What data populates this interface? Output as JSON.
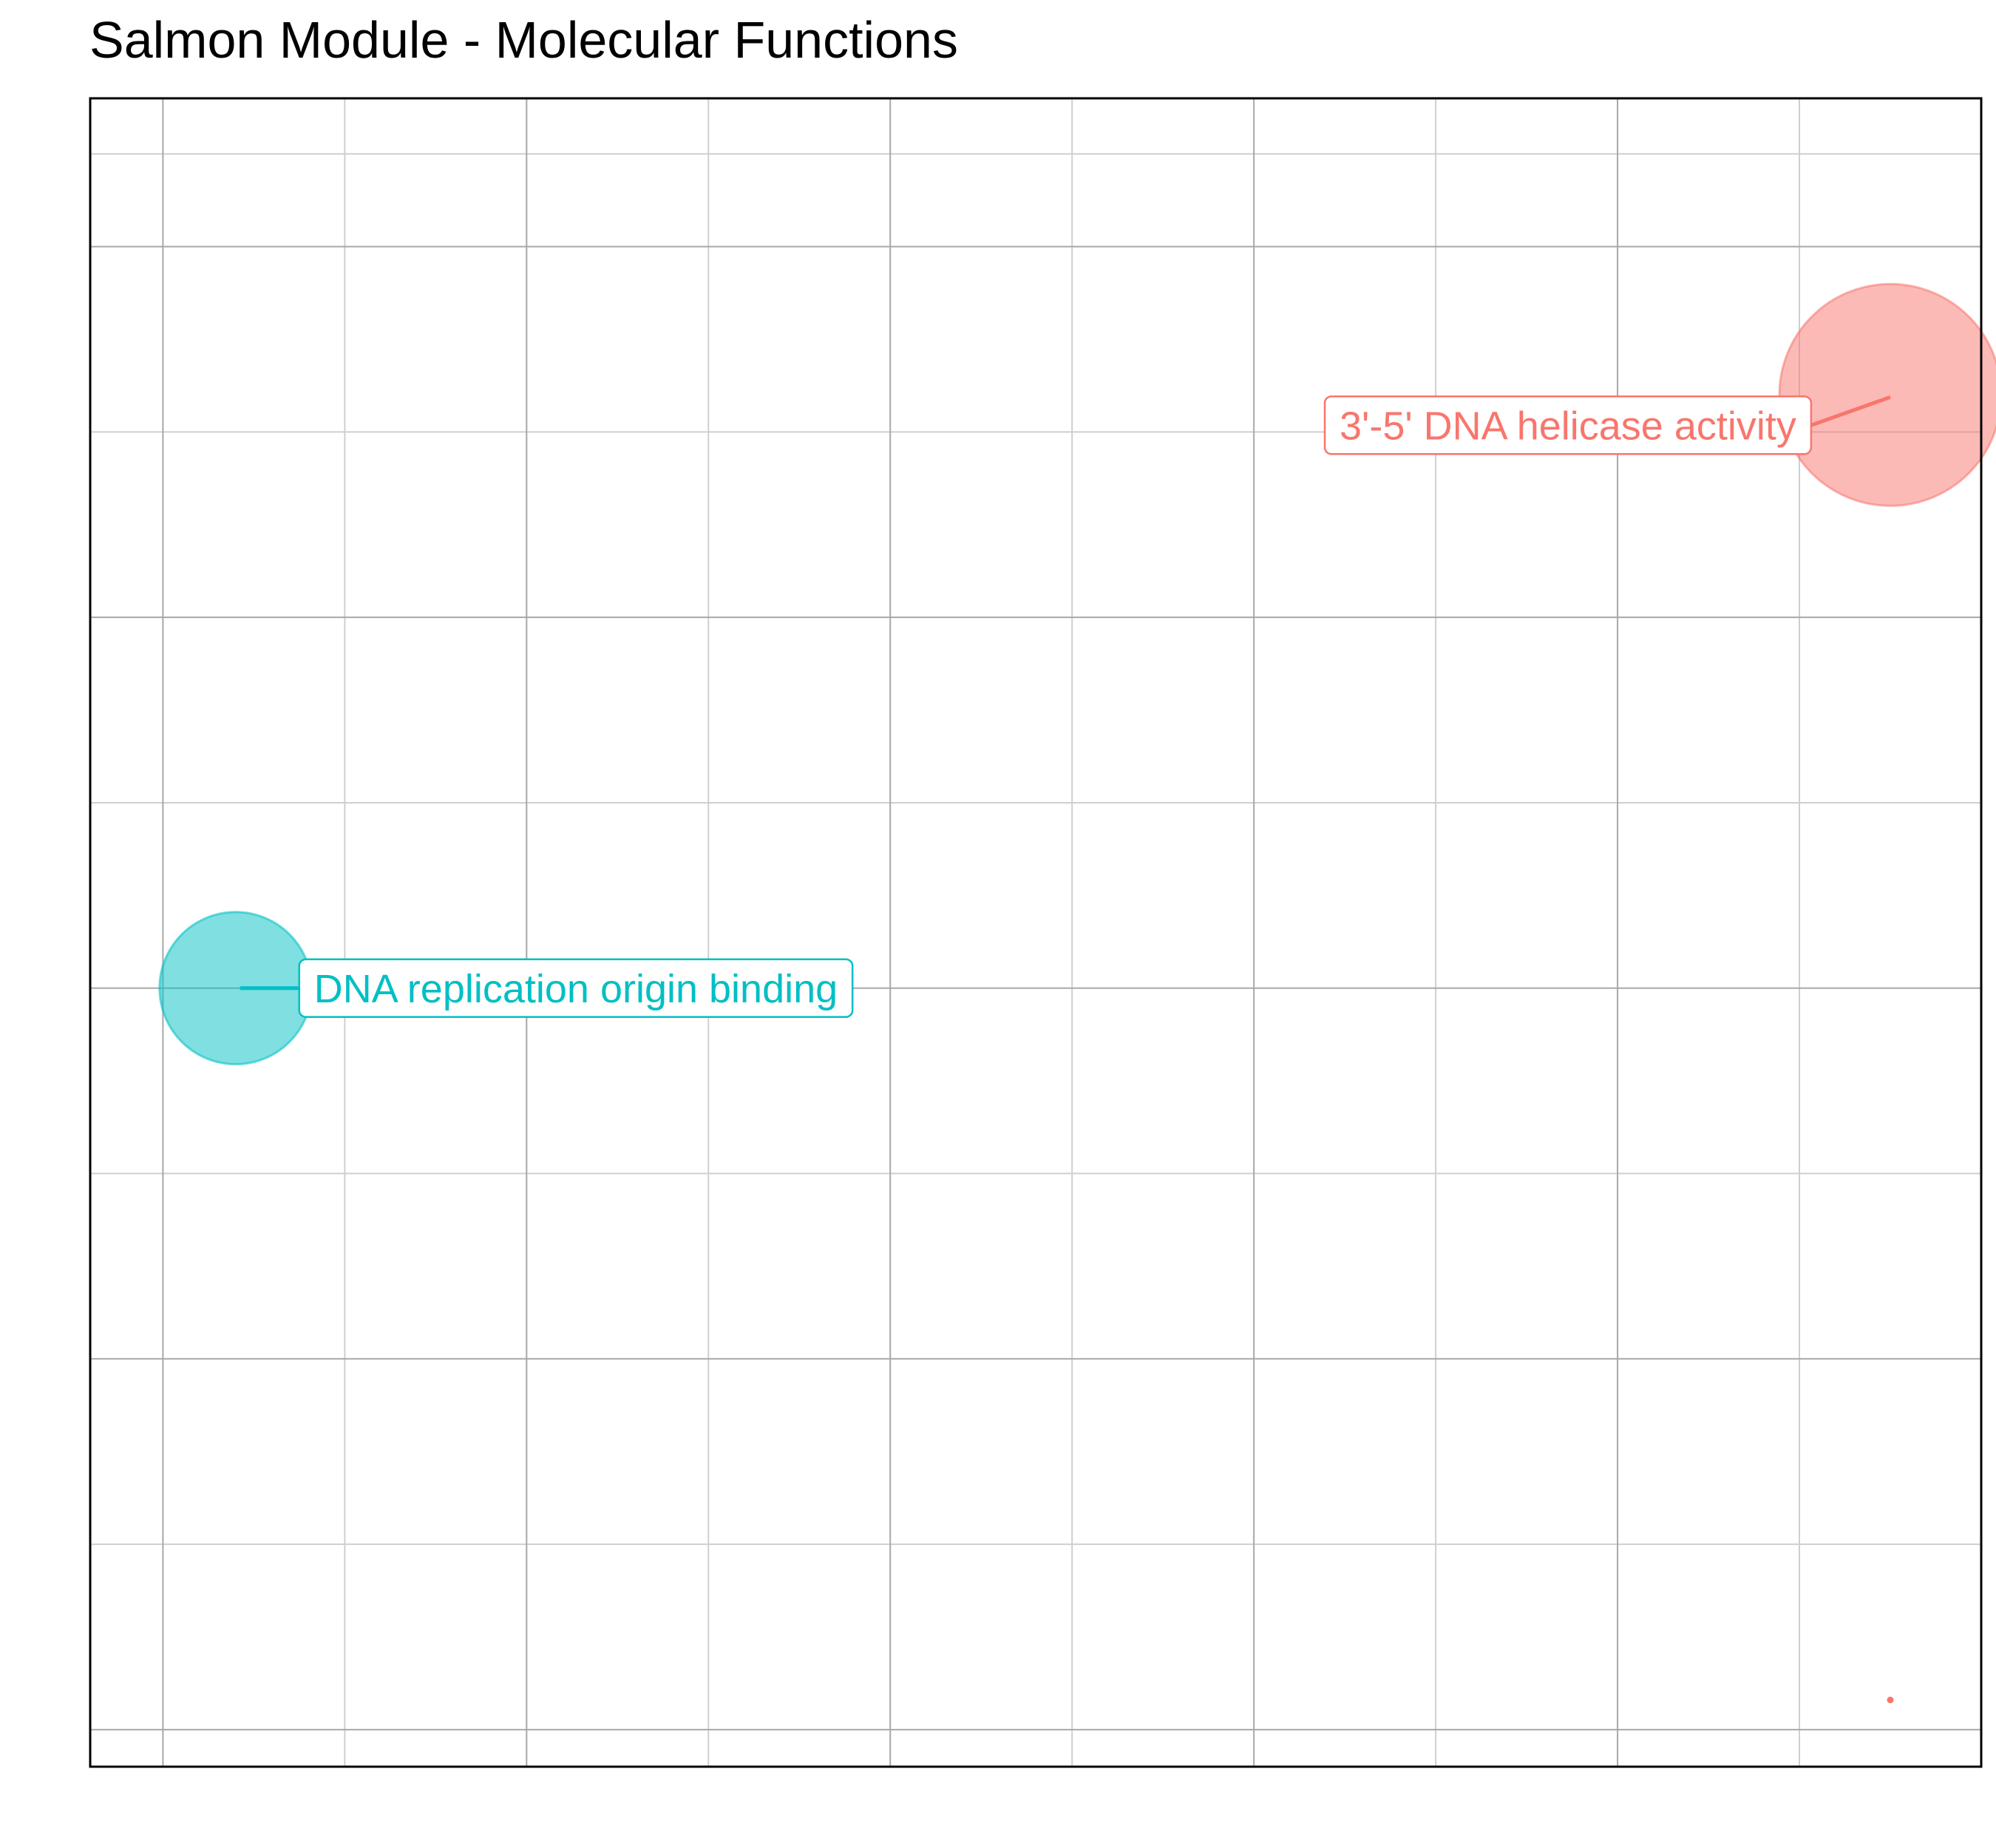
{
  "chart_data": {
    "type": "scatter",
    "title": "Salmon Module - Molecular Functions",
    "xlabel": "",
    "ylabel": "",
    "grid": true,
    "axis_tick_labels_visible": false,
    "points": [
      {
        "label": "3'-5' DNA helicase activity",
        "x": 0.95,
        "y": 0.9,
        "size": "large",
        "color": "#F8766D",
        "label_side": "left"
      },
      {
        "label": "DNA replication origin binding",
        "x": 0.04,
        "y": 0.5,
        "size": "medium",
        "color": "#00BFC4",
        "label_side": "right"
      },
      {
        "label": "",
        "x": 0.95,
        "y": 0.02,
        "size": "tiny",
        "color": "#F8766D",
        "label_side": "none"
      }
    ]
  }
}
